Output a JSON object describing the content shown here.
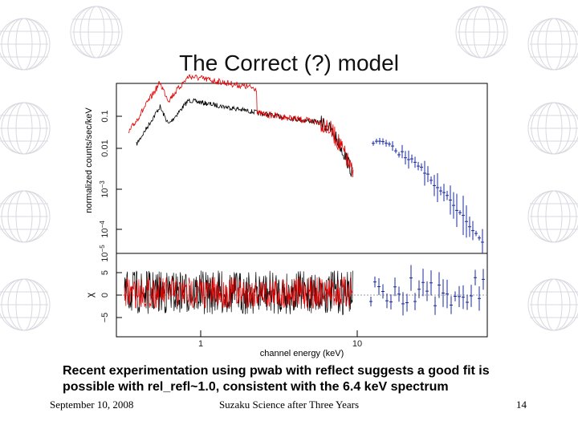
{
  "slide": {
    "title": "The Correct (?) model",
    "figure": {
      "y_label": "normalized counts/sec/keV",
      "x_label": "channel energy (keV)",
      "residual_label": "χ",
      "x_ticks": [
        "1",
        "10"
      ],
      "y_ticks": [
        {
          "base": "0.1"
        },
        {
          "base": "0.01"
        },
        {
          "base": "10",
          "exp": "−3"
        },
        {
          "base": "10",
          "exp": "−4"
        },
        {
          "base": "10",
          "exp": "−5"
        }
      ],
      "residual_ticks": [
        "5",
        "0",
        "−5"
      ]
    },
    "caption": [
      "Recent experimentation using pwab with reflect suggests a good fit is",
      "possible with rel_refl~1.0, consistent with the 6.4 keV spectrum"
    ],
    "footer": {
      "date": "September 10, 2008",
      "event": "Suzaku Science after Three Years",
      "page": "14"
    }
  }
}
